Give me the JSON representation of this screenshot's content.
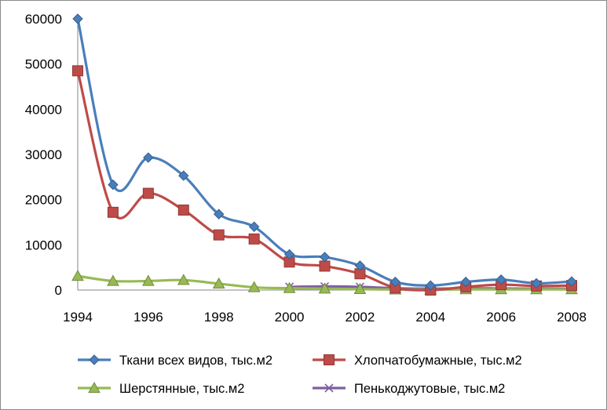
{
  "chart_data": {
    "type": "line",
    "title": "",
    "xlabel": "",
    "ylabel": "",
    "x": [
      1994,
      1995,
      1996,
      1997,
      1998,
      1999,
      2000,
      2001,
      2002,
      2003,
      2004,
      2005,
      2006,
      2007,
      2008
    ],
    "xlim": [
      1994,
      2008
    ],
    "ylim": [
      0,
      60000
    ],
    "x_ticks": [
      1994,
      1996,
      1998,
      2000,
      2002,
      2004,
      2006,
      2008
    ],
    "y_ticks": [
      0,
      10000,
      20000,
      30000,
      40000,
      50000,
      60000
    ],
    "grid": false,
    "smoothed": true,
    "legend_position": "bottom",
    "series": [
      {
        "name": "Ткани всех видов, тыс.м2",
        "color": "#4a7ebb",
        "marker": "diamond",
        "values": [
          60000,
          23300,
          29300,
          25300,
          16800,
          14000,
          7900,
          7300,
          5400,
          1800,
          1000,
          1800,
          2300,
          1500,
          1900
        ]
      },
      {
        "name": "Хлопчатобумажные, тыс.м2",
        "color": "#be4b48",
        "marker": "square",
        "values": [
          48500,
          17200,
          21400,
          17700,
          12200,
          11300,
          6200,
          5300,
          3600,
          500,
          0,
          700,
          1200,
          900,
          1000
        ]
      },
      {
        "name": "Шерстянные, тыс.м2",
        "color": "#98b954",
        "marker": "triangle",
        "values": [
          3100,
          2000,
          2000,
          2200,
          1400,
          600,
          400,
          300,
          200,
          100,
          100,
          150,
          150,
          150,
          150
        ]
      },
      {
        "name": "Пенькоджутовые, тыс.м2",
        "color": "#7d60a0",
        "marker": "x",
        "values": [
          null,
          null,
          null,
          null,
          null,
          null,
          700,
          800,
          700,
          400,
          300,
          400,
          350,
          300,
          300
        ]
      }
    ]
  }
}
